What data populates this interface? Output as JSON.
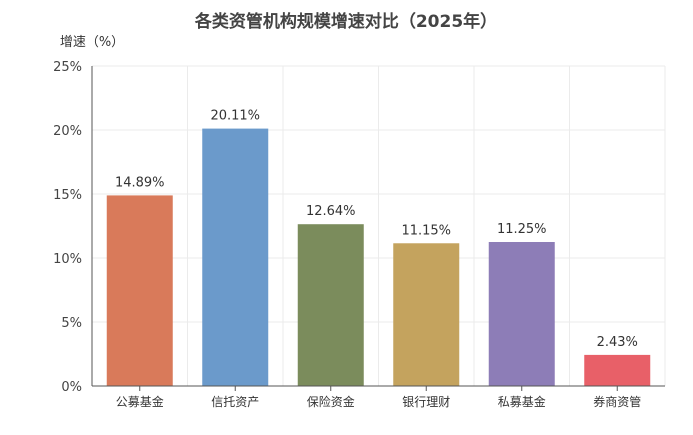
{
  "chart_data": {
    "type": "bar",
    "title": "各类资管机构规模增速对比（2025年）",
    "ylabel": "增速（%）",
    "xlabel": "",
    "categories": [
      "公募基金",
      "信托资产",
      "保险资金",
      "银行理财",
      "私募基金",
      "券商资管"
    ],
    "values": [
      14.89,
      20.11,
      12.64,
      11.15,
      11.25,
      2.43
    ],
    "value_labels": [
      "14.89%",
      "20.11%",
      "12.64%",
      "11.15%",
      "11.25%",
      "2.43%"
    ],
    "colors": [
      "#d97a5a",
      "#6b9acb",
      "#7b8c5c",
      "#c4a35e",
      "#8d7db7",
      "#e86068"
    ],
    "ylim": [
      0,
      25
    ],
    "yticks": [
      0,
      5,
      10,
      15,
      20,
      25
    ],
    "ytick_labels": [
      "0%",
      "5%",
      "10%",
      "15%",
      "20%",
      "25%"
    ],
    "grid": true,
    "legend": "none"
  }
}
